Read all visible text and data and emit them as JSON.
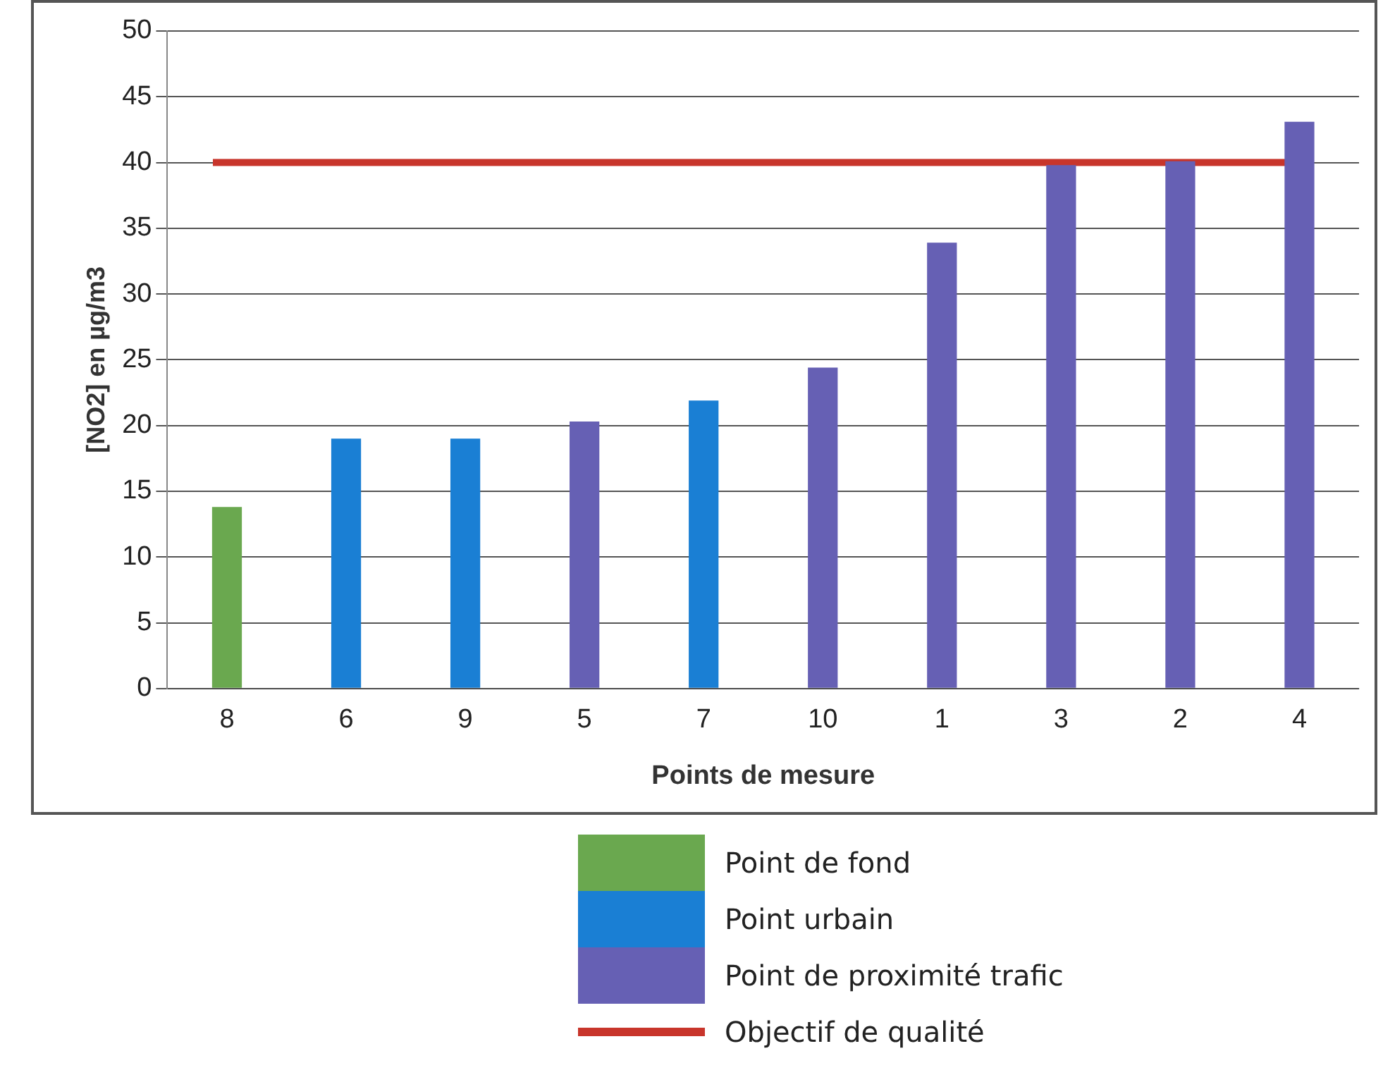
{
  "chart_data": {
    "type": "bar",
    "xlabel": "Points de mesure",
    "ylabel": "[NO2] en µg/m3",
    "categories": [
      "8",
      "6",
      "9",
      "5",
      "7",
      "10",
      "1",
      "3",
      "2",
      "4"
    ],
    "series": [
      {
        "name": "Point de fond",
        "color": "#6aa84f",
        "values": [
          13.8,
          null,
          null,
          null,
          null,
          null,
          null,
          null,
          null,
          null
        ]
      },
      {
        "name": "Point urbain",
        "color": "#1a7fd4",
        "values": [
          null,
          19.0,
          19.0,
          null,
          21.9,
          null,
          null,
          null,
          null,
          null
        ]
      },
      {
        "name": "Point de proximité trafic",
        "color": "#6660b4",
        "values": [
          null,
          null,
          null,
          20.3,
          null,
          24.4,
          33.9,
          39.8,
          40.1,
          43.1
        ]
      }
    ],
    "stacked": true,
    "ylim": [
      0,
      50
    ],
    "yticks": [
      0,
      5,
      10,
      15,
      20,
      25,
      30,
      35,
      40,
      45,
      50
    ],
    "grid": "y",
    "legend": "bottom",
    "ref_lines": [
      {
        "axis": "y",
        "value": 40,
        "label": "Objectif de qualité",
        "color": "#c8352b"
      }
    ]
  }
}
